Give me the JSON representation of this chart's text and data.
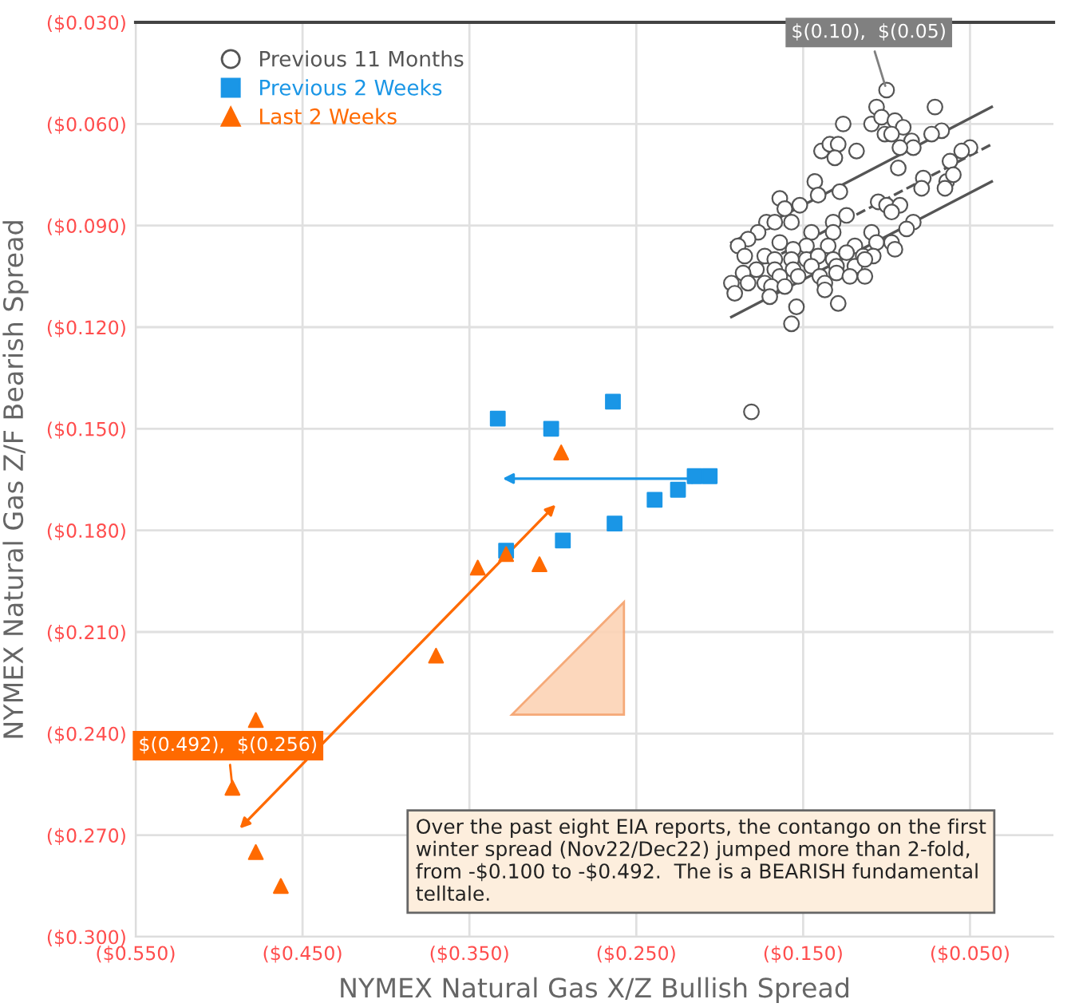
{
  "chart_data": {
    "type": "scatter",
    "xlabel": "NYMEX Natural Gas X/Z Bullish Spread",
    "ylabel": "NYMEX Natural Gas Z/F Bearish Spread",
    "xlim": [
      -0.55,
      0
    ],
    "ylim": [
      -0.3,
      -0.03
    ],
    "xticks": [
      {
        "value": -0.55,
        "label": "($0.550)"
      },
      {
        "value": -0.45,
        "label": "($0.450)"
      },
      {
        "value": -0.35,
        "label": "($0.350)"
      },
      {
        "value": -0.25,
        "label": "($0.250)"
      },
      {
        "value": -0.15,
        "label": "($0.150)"
      },
      {
        "value": -0.05,
        "label": "($0.050)"
      }
    ],
    "yticks": [
      {
        "value": -0.03,
        "label": "($0.030)"
      },
      {
        "value": -0.06,
        "label": "($0.060)"
      },
      {
        "value": -0.09,
        "label": "($0.090)"
      },
      {
        "value": -0.12,
        "label": "($0.120)"
      },
      {
        "value": -0.15,
        "label": "($0.150)"
      },
      {
        "value": -0.18,
        "label": "($0.180)"
      },
      {
        "value": -0.21,
        "label": "($0.210)"
      },
      {
        "value": -0.24,
        "label": "($0.240)"
      },
      {
        "value": -0.27,
        "label": "($0.270)"
      },
      {
        "value": -0.3,
        "label": "($0.300)"
      }
    ],
    "grid": true,
    "legend": "top left",
    "series": [
      {
        "name": "Previous 11 Months",
        "color": "#555555",
        "marker": "circle",
        "x": [
          -0.1,
          -0.071,
          -0.106,
          -0.126,
          -0.109,
          -0.103,
          -0.095,
          -0.09,
          -0.101,
          -0.097,
          -0.067,
          -0.073,
          -0.085,
          -0.084,
          -0.092,
          -0.139,
          -0.134,
          -0.129,
          -0.131,
          -0.118,
          -0.093,
          -0.05,
          -0.055,
          -0.062,
          -0.078,
          -0.079,
          -0.064,
          -0.06,
          -0.065,
          -0.143,
          -0.141,
          -0.128,
          -0.105,
          -0.1,
          -0.092,
          -0.097,
          -0.084,
          -0.088,
          -0.164,
          -0.161,
          -0.152,
          -0.124,
          -0.132,
          -0.172,
          -0.167,
          -0.157,
          -0.177,
          -0.145,
          -0.132,
          -0.109,
          -0.106,
          -0.097,
          -0.119,
          -0.135,
          -0.148,
          -0.156,
          -0.164,
          -0.183,
          -0.189,
          -0.185,
          -0.173,
          -0.167,
          -0.157,
          -0.148,
          -0.141,
          -0.132,
          -0.124,
          -0.114,
          -0.108,
          -0.095,
          -0.178,
          -0.167,
          -0.156,
          -0.145,
          -0.13,
          -0.119,
          -0.113,
          -0.186,
          -0.193,
          -0.183,
          -0.173,
          -0.164,
          -0.153,
          -0.14,
          -0.13,
          -0.122,
          -0.169,
          -0.161,
          -0.137,
          -0.113,
          -0.191,
          -0.137,
          -0.17,
          -0.154,
          -0.129,
          -0.157,
          -0.181
        ],
        "values": [
          -0.05,
          -0.055,
          -0.055,
          -0.06,
          -0.06,
          -0.058,
          -0.059,
          -0.061,
          -0.063,
          -0.063,
          -0.062,
          -0.063,
          -0.065,
          -0.067,
          -0.067,
          -0.068,
          -0.066,
          -0.066,
          -0.07,
          -0.068,
          -0.073,
          -0.067,
          -0.068,
          -0.071,
          -0.076,
          -0.079,
          -0.077,
          -0.075,
          -0.079,
          -0.077,
          -0.081,
          -0.08,
          -0.083,
          -0.084,
          -0.084,
          -0.086,
          -0.089,
          -0.091,
          -0.082,
          -0.085,
          -0.084,
          -0.087,
          -0.089,
          -0.089,
          -0.089,
          -0.089,
          -0.092,
          -0.092,
          -0.092,
          -0.092,
          -0.095,
          -0.095,
          -0.096,
          -0.096,
          -0.096,
          -0.097,
          -0.095,
          -0.094,
          -0.096,
          -0.099,
          -0.099,
          -0.1,
          -0.1,
          -0.1,
          -0.099,
          -0.1,
          -0.098,
          -0.099,
          -0.099,
          -0.097,
          -0.103,
          -0.103,
          -0.103,
          -0.102,
          -0.102,
          -0.102,
          -0.1,
          -0.104,
          -0.107,
          -0.107,
          -0.107,
          -0.105,
          -0.105,
          -0.105,
          -0.104,
          -0.105,
          -0.108,
          -0.108,
          -0.107,
          -0.105,
          -0.11,
          -0.109,
          -0.111,
          -0.114,
          -0.113,
          -0.119,
          -0.145
        ]
      },
      {
        "name": "Previous 2 Weeks",
        "color": "#1a96e6",
        "marker": "square",
        "x": [
          -0.333,
          -0.301,
          -0.264,
          -0.215,
          -0.206,
          -0.225,
          -0.239,
          -0.263,
          -0.294,
          -0.328
        ],
        "values": [
          -0.147,
          -0.15,
          -0.142,
          -0.164,
          -0.164,
          -0.168,
          -0.171,
          -0.178,
          -0.183,
          -0.186
        ]
      },
      {
        "name": "Last 2 Weeks",
        "color": "#ff6a00",
        "marker": "triangle",
        "x": [
          -0.295,
          -0.345,
          -0.328,
          -0.308,
          -0.37,
          -0.478,
          -0.492,
          -0.478,
          -0.463
        ],
        "values": [
          -0.157,
          -0.191,
          -0.187,
          -0.19,
          -0.217,
          -0.236,
          -0.256,
          -0.275,
          -0.285
        ]
      },
      {
        "type": "line",
        "color": "#555555",
        "line_style": "solid",
        "x": [
          -0.193,
          -0.037
        ],
        "values": [
          -0.095,
          -0.055
        ]
      },
      {
        "type": "line",
        "color": "#555555",
        "line_style": "dashed",
        "x": [
          -0.193,
          -0.037
        ],
        "values": [
          -0.106,
          -0.066
        ]
      },
      {
        "type": "line",
        "color": "#555555",
        "line_style": "solid",
        "x": [
          -0.193,
          -0.037
        ],
        "values": [
          -0.117,
          -0.077
        ]
      }
    ],
    "annotations": [
      {
        "text": "$(0.10),  $(0.05)",
        "x": -0.1,
        "y": -0.05
      },
      {
        "text": "$(0.492),  $(0.256)",
        "x": -0.492,
        "y": -0.256
      },
      "Over the past eight EIA reports, the contango on the first\nwinter spread (Nov22/Dec22) jumped more than 2-fold,\nfrom -$0.100 to -$0.492.  The is a BEARISH fundamental\ntelltale."
    ]
  }
}
